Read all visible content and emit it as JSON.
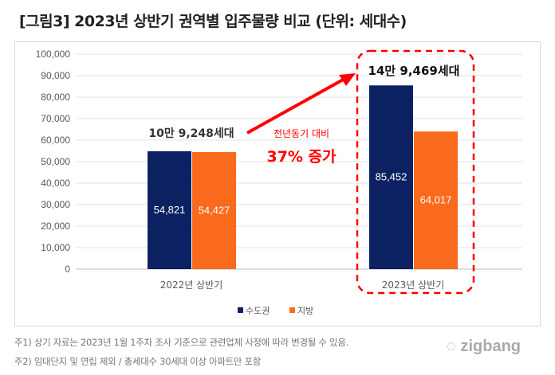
{
  "title": "[그림3] 2023년 상반기 권역별 입주물량 비교 (단위: 세대수)",
  "chart_data": {
    "type": "bar",
    "title": "[그림3] 2023년 상반기 권역별 입주물량 비교 (단위: 세대수)",
    "categories": [
      "2022년 상반기",
      "2023년 상반기"
    ],
    "series": [
      {
        "name": "수도권",
        "color": "#0b2161",
        "values": [
          54821,
          85452
        ],
        "labels": [
          "54,821",
          "85,452"
        ]
      },
      {
        "name": "지방",
        "color": "#fa6a1d",
        "values": [
          54427,
          64017
        ],
        "labels": [
          "54,427",
          "64,017"
        ]
      }
    ],
    "ylim": [
      0,
      100000
    ],
    "yticks": [
      "0",
      "10,000",
      "20,000",
      "30,000",
      "40,000",
      "50,000",
      "60,000",
      "70,000",
      "80,000",
      "90,000",
      "100,000"
    ],
    "legend": "bottom",
    "grid": true,
    "annotations": {
      "total_2022": "10만 9,248세대",
      "total_2023": "14만 9,469세대",
      "yoy_label": "전년동기 대비",
      "yoy_value": "37% 증가"
    }
  },
  "notes": [
    "주1) 상기 자료는 2023년 1월 1주차 조사 기준으로 관련업체 사정에 따라 변경될 수 있음.",
    "주2) 임대단지 및 연립 제외 / 총세대수 30세대 이상 아파트만 포함"
  ],
  "logo": "zigbang"
}
